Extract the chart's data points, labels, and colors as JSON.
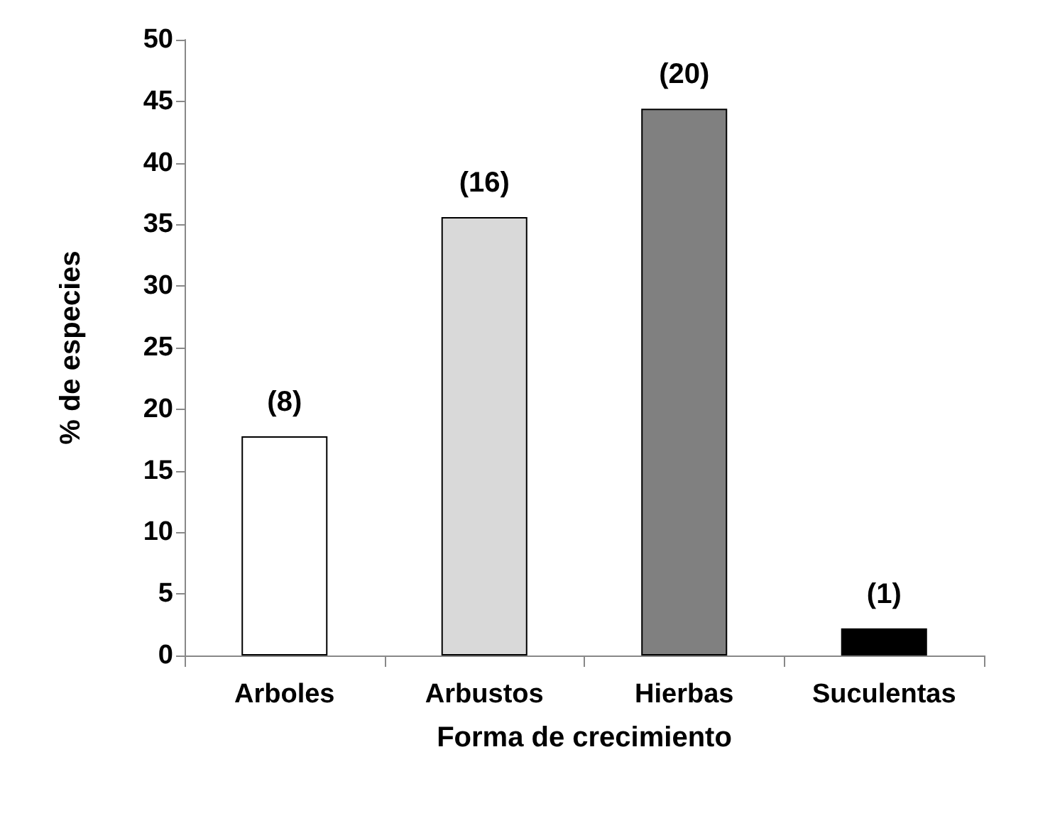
{
  "chart_data": {
    "type": "bar",
    "xlabel": "Forma de crecimiento",
    "ylabel": "% de especies",
    "categories": [
      "Arboles",
      "Arbustos",
      "Hierbas",
      "Suculentas"
    ],
    "values": [
      17.8,
      35.6,
      44.4,
      2.2
    ],
    "colors": [
      "#ffffff",
      "#d9d9d9",
      "#808080",
      "#000000"
    ],
    "annotations": [
      {
        "text": "(8)",
        "x": "Arboles",
        "y": 17.8
      },
      {
        "text": "(16)",
        "x": "Arbustos",
        "y": 35.6
      },
      {
        "text": "(20)",
        "x": "Hierbas",
        "y": 44.4
      },
      {
        "text": "(1)",
        "x": "Suculentas",
        "y": 2.2
      }
    ],
    "ylim": [
      0,
      50
    ],
    "yticks": [
      0,
      5,
      10,
      15,
      20,
      25,
      30,
      35,
      40,
      45,
      50
    ],
    "grid": false
  }
}
